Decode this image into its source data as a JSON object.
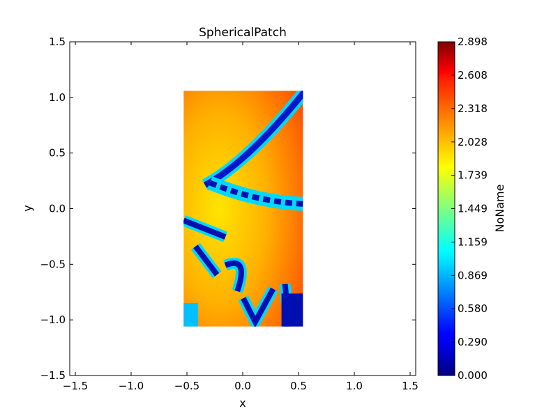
{
  "chart_data": {
    "type": "heatmap",
    "title": "SphericalPatch",
    "xlabel": "x",
    "ylabel": "y",
    "xlim": [
      -1.55,
      1.55
    ],
    "ylim": [
      -1.5,
      1.5
    ],
    "xticks": [
      -1.5,
      -1.0,
      -0.5,
      0.0,
      0.5,
      1.0,
      1.5
    ],
    "xtick_labels": [
      "−1.5",
      "−1.0",
      "−0.5",
      "0.0",
      "0.5",
      "1.0",
      "1.5"
    ],
    "yticks": [
      -1.5,
      -1.0,
      -0.5,
      0.0,
      0.5,
      1.0,
      1.5
    ],
    "ytick_labels": [
      "−1.5",
      "−1.0",
      "−0.5",
      "0.0",
      "0.5",
      "1.0",
      "1.5"
    ],
    "image_extent": {
      "x": [
        -0.53,
        0.54
      ],
      "y": [
        -1.06,
        1.06
      ]
    },
    "colorbar": {
      "label": "NoName",
      "colormap": "jet",
      "range": [
        0.0,
        2.898
      ],
      "ticks": [
        0.0,
        0.29,
        0.58,
        0.869,
        1.159,
        1.449,
        1.739,
        2.028,
        2.318,
        2.608,
        2.898
      ],
      "tick_labels": [
        "0.000",
        "0.290",
        "0.580",
        "0.869",
        "1.159",
        "1.449",
        "1.739",
        "2.028",
        "2.318",
        "2.608",
        "2.898"
      ]
    },
    "grid": false,
    "legend": "none"
  }
}
